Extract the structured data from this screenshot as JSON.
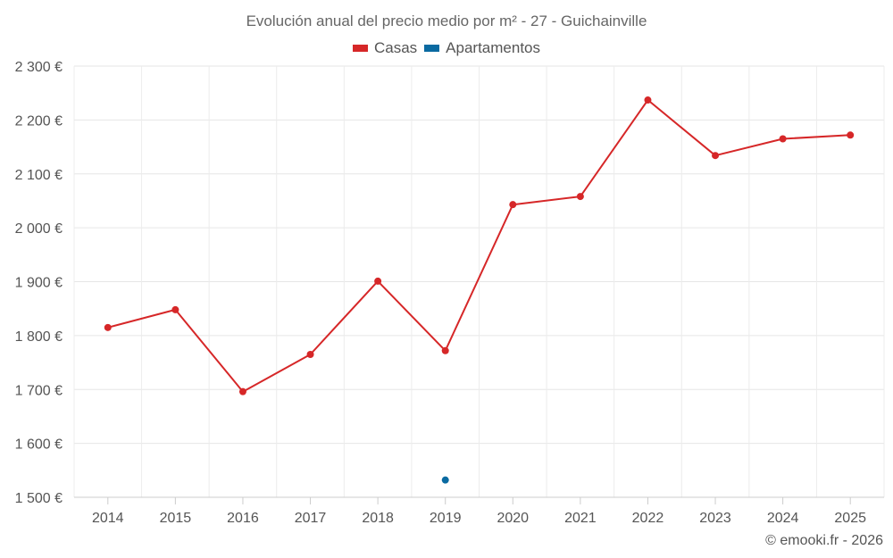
{
  "chart_data": {
    "type": "line",
    "title": "Evolución anual del precio medio por m² - 27 - Guichainville",
    "categories": [
      "2014",
      "2015",
      "2016",
      "2017",
      "2018",
      "2019",
      "2020",
      "2021",
      "2022",
      "2023",
      "2024",
      "2025"
    ],
    "series": [
      {
        "name": "Casas",
        "color": "#d62728",
        "values": [
          1815,
          1848,
          1696,
          1765,
          1901,
          1772,
          2043,
          2058,
          2237,
          2134,
          2165,
          2172
        ]
      },
      {
        "name": "Apartamentos",
        "color": "#0a6aa1",
        "values": [
          null,
          null,
          null,
          null,
          null,
          1532,
          null,
          null,
          null,
          null,
          null,
          null
        ]
      }
    ],
    "ylim": [
      1500,
      2300
    ],
    "yticks": [
      1500,
      1600,
      1700,
      1800,
      1900,
      2000,
      2100,
      2200,
      2300
    ],
    "ytick_labels": [
      "1 500 €",
      "1 600 €",
      "1 700 €",
      "1 800 €",
      "1 900 €",
      "2 000 €",
      "2 100 €",
      "2 200 €",
      "2 300 €"
    ],
    "xlabel": "",
    "ylabel": "",
    "grid": true,
    "legend": "top-center"
  },
  "credit": "© emooki.fr - 2026"
}
